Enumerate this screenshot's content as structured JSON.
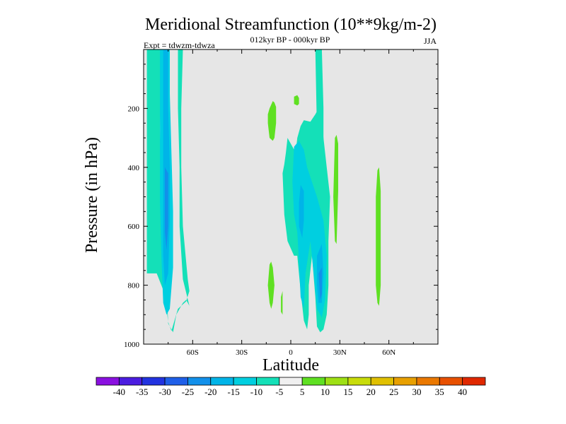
{
  "chart_data": {
    "type": "heatmap",
    "title": "Meridional Streamfunction (10**9kg/m-2)",
    "subtitle_center": "012kyr BP - 000kyr BP",
    "subtitle_left": "Expt = tdwzm-tdwza",
    "subtitle_right": "JJA",
    "xlabel": "Latitude",
    "ylabel": "Pressure (in hPa)",
    "xlim": [
      -90,
      90
    ],
    "ylim": [
      1000,
      0
    ],
    "x_ticks": [
      {
        "value": -60,
        "label": "60S"
      },
      {
        "value": -30,
        "label": "30S"
      },
      {
        "value": 0,
        "label": "0"
      },
      {
        "value": 30,
        "label": "30N"
      },
      {
        "value": 60,
        "label": "60N"
      }
    ],
    "y_ticks": [
      {
        "value": 200,
        "label": "200"
      },
      {
        "value": 400,
        "label": "400"
      },
      {
        "value": 600,
        "label": "600"
      },
      {
        "value": 800,
        "label": "800"
      },
      {
        "value": 1000,
        "label": "1000"
      }
    ],
    "background_color": "#e6e6e6",
    "colorbar": {
      "labels": [
        "-40",
        "-35",
        "-30",
        "-25",
        "-20",
        "-15",
        "-10",
        "-5",
        "5",
        "10",
        "15",
        "20",
        "25",
        "30",
        "35",
        "40"
      ],
      "colors": [
        "#8a10e0",
        "#4b1de0",
        "#2233e0",
        "#1f5fe8",
        "#1290ea",
        "#00b4e8",
        "#00cfe0",
        "#14e0b8",
        "#f0f0f0",
        "#5fe022",
        "#9ee014",
        "#c8dc0a",
        "#e0c000",
        "#e8a000",
        "#ea7800",
        "#e85000",
        "#e02800"
      ]
    },
    "regions": [
      {
        "name": "s-hem-cell-outer",
        "color": "#14e0b8",
        "points": [
          [
            -88,
            0
          ],
          [
            -79,
            0
          ],
          [
            -80,
            270
          ],
          [
            -79,
            500
          ],
          [
            -76,
            800
          ],
          [
            -75,
            930
          ],
          [
            -72,
            960
          ],
          [
            -70,
            900
          ],
          [
            -66,
            860
          ],
          [
            -64,
            850
          ],
          [
            -62,
            870
          ],
          [
            -66,
            780
          ],
          [
            -68,
            600
          ],
          [
            -68,
            400
          ],
          [
            -69,
            200
          ],
          [
            -69,
            0
          ],
          [
            -66,
            0
          ],
          [
            -67,
            200
          ],
          [
            -67,
            400
          ],
          [
            -66,
            600
          ],
          [
            -63,
            780
          ],
          [
            -62,
            820
          ],
          [
            -64,
            855
          ],
          [
            -69,
            880
          ],
          [
            -73,
            955
          ],
          [
            -75,
            925
          ],
          [
            -77,
            830
          ],
          [
            -82,
            760
          ],
          [
            -88,
            760
          ]
        ]
      },
      {
        "name": "s-hem-cell-mid",
        "color": "#00cfe0",
        "points": [
          [
            -80,
            0
          ],
          [
            -74,
            0
          ],
          [
            -74,
            150
          ],
          [
            -73,
            350
          ],
          [
            -72,
            550
          ],
          [
            -72,
            740
          ],
          [
            -74,
            880
          ],
          [
            -76,
            900
          ],
          [
            -78,
            860
          ],
          [
            -79,
            720
          ],
          [
            -80,
            520
          ],
          [
            -80,
            250
          ]
        ]
      },
      {
        "name": "s-hem-cell-core",
        "color": "#00b4e8",
        "points": [
          [
            -78,
            0
          ],
          [
            -75,
            0
          ],
          [
            -75,
            200
          ],
          [
            -74,
            400
          ],
          [
            -74,
            580
          ],
          [
            -75,
            760
          ],
          [
            -77,
            800
          ],
          [
            -78,
            700
          ],
          [
            -78,
            500
          ],
          [
            -78,
            250
          ]
        ]
      },
      {
        "name": "s-hem-cell-peak",
        "color": "#1290ea",
        "points": [
          [
            -77,
            400
          ],
          [
            -75,
            420
          ],
          [
            -75,
            600
          ],
          [
            -76,
            680
          ],
          [
            -77,
            620
          ]
        ]
      },
      {
        "name": "tropics-upper-stripe",
        "color": "#14e0b8",
        "points": [
          [
            15,
            0
          ],
          [
            19,
            0
          ],
          [
            20,
            200
          ],
          [
            20,
            420
          ],
          [
            18,
            440
          ],
          [
            16,
            280
          ]
        ]
      },
      {
        "name": "tropics-cell-outer",
        "color": "#14e0b8",
        "points": [
          [
            -5,
            420
          ],
          [
            -4,
            390
          ],
          [
            -3,
            350
          ],
          [
            -2,
            300
          ],
          [
            0,
            320
          ],
          [
            3,
            350
          ],
          [
            4,
            300
          ],
          [
            6,
            260
          ],
          [
            8,
            240
          ],
          [
            12,
            245
          ],
          [
            15,
            220
          ],
          [
            17,
            200
          ],
          [
            19,
            230
          ],
          [
            20,
            300
          ],
          [
            22,
            400
          ],
          [
            24,
            500
          ],
          [
            23,
            650
          ],
          [
            23,
            800
          ],
          [
            22,
            900
          ],
          [
            20,
            950
          ],
          [
            18,
            960
          ],
          [
            16,
            940
          ],
          [
            15,
            840
          ],
          [
            13,
            700
          ],
          [
            11,
            800
          ],
          [
            11,
            900
          ],
          [
            10,
            950
          ],
          [
            8,
            920
          ],
          [
            6,
            820
          ],
          [
            4,
            700
          ],
          [
            2,
            700
          ],
          [
            -2,
            650
          ],
          [
            -4,
            560
          ]
        ]
      },
      {
        "name": "tropics-cell-mid",
        "color": "#00cfe0",
        "points": [
          [
            2,
            330
          ],
          [
            5,
            310
          ],
          [
            8,
            340
          ],
          [
            10,
            400
          ],
          [
            13,
            450
          ],
          [
            16,
            500
          ],
          [
            20,
            580
          ],
          [
            22,
            700
          ],
          [
            21,
            850
          ],
          [
            19,
            910
          ],
          [
            16,
            880
          ],
          [
            14,
            760
          ],
          [
            12,
            650
          ],
          [
            9,
            760
          ],
          [
            8,
            880
          ],
          [
            6,
            840
          ],
          [
            5,
            720
          ],
          [
            4,
            620
          ],
          [
            2,
            560
          ],
          [
            1,
            450
          ]
        ]
      },
      {
        "name": "tropics-cell-core-a",
        "color": "#00b4e8",
        "points": [
          [
            6,
            460
          ],
          [
            8,
            480
          ],
          [
            8,
            580
          ],
          [
            7,
            640
          ],
          [
            5,
            600
          ],
          [
            5,
            520
          ]
        ]
      },
      {
        "name": "tropics-cell-core-b",
        "color": "#00b4e8",
        "points": [
          [
            16,
            700
          ],
          [
            19,
            660
          ],
          [
            20,
            760
          ],
          [
            19,
            860
          ],
          [
            17,
            860
          ],
          [
            16,
            800
          ]
        ]
      },
      {
        "name": "tropics-cell-peak",
        "color": "#1290ea",
        "points": [
          [
            17,
            760
          ],
          [
            19,
            740
          ],
          [
            19,
            830
          ],
          [
            18,
            850
          ]
        ]
      },
      {
        "name": "pos-upper-blob-1",
        "color": "#5fe022",
        "points": [
          [
            -13,
            200
          ],
          [
            -11,
            175
          ],
          [
            -10,
            180
          ],
          [
            -9,
            195
          ],
          [
            -9,
            250
          ],
          [
            -10,
            300
          ],
          [
            -11,
            310
          ],
          [
            -13,
            300
          ],
          [
            -14,
            250
          ],
          [
            -14,
            220
          ]
        ]
      },
      {
        "name": "pos-upper-blob-2",
        "color": "#5fe022",
        "points": [
          [
            -12,
            190
          ],
          [
            -11,
            185
          ],
          [
            -10,
            192
          ],
          [
            -10,
            205
          ],
          [
            -11,
            210
          ],
          [
            -12,
            205
          ]
        ]
      },
      {
        "name": "pos-upper-blob-3",
        "color": "#5fe022",
        "points": [
          [
            2,
            160
          ],
          [
            4,
            155
          ],
          [
            5,
            165
          ],
          [
            5,
            185
          ],
          [
            4,
            190
          ],
          [
            2,
            185
          ]
        ]
      },
      {
        "name": "pos-lower-blob-1",
        "color": "#5fe022",
        "points": [
          [
            -13,
            730
          ],
          [
            -12,
            720
          ],
          [
            -11,
            740
          ],
          [
            -10,
            800
          ],
          [
            -11,
            860
          ],
          [
            -12,
            880
          ],
          [
            -13,
            860
          ],
          [
            -14,
            800
          ]
        ]
      },
      {
        "name": "pos-lower-blob-2",
        "color": "#5fe022",
        "points": [
          [
            -6,
            840
          ],
          [
            -5,
            820
          ],
          [
            -5,
            900
          ],
          [
            -6,
            890
          ]
        ]
      },
      {
        "name": "pos-mid-stripe",
        "color": "#5fe022",
        "points": [
          [
            27,
            300
          ],
          [
            28,
            290
          ],
          [
            29,
            320
          ],
          [
            29,
            480
          ],
          [
            28,
            660
          ],
          [
            27,
            650
          ],
          [
            26,
            500
          ]
        ]
      },
      {
        "name": "pos-far-stripe",
        "color": "#5fe022",
        "points": [
          [
            53,
            410
          ],
          [
            54,
            400
          ],
          [
            55,
            480
          ],
          [
            55,
            800
          ],
          [
            54,
            870
          ],
          [
            53,
            860
          ],
          [
            52,
            800
          ],
          [
            52,
            500
          ]
        ]
      }
    ]
  }
}
